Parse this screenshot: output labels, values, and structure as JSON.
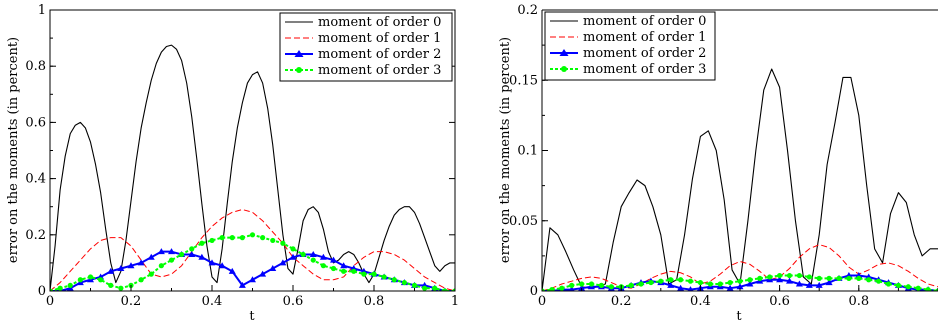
{
  "colors": {
    "order0": "#000000",
    "order1": "#ff0000",
    "order2": "#0000ff",
    "order3": "#00ff00"
  },
  "chart_data": [
    {
      "type": "line",
      "xlabel": "t",
      "ylabel": "error on the moments (in percent)",
      "xlim": [
        0,
        1
      ],
      "ylim": [
        0,
        1
      ],
      "x_ticks": [
        0,
        0.2,
        0.4,
        0.6,
        0.8,
        1
      ],
      "x_tick_labels": [
        "0",
        "0.2",
        "0.4",
        "0.6",
        "0.8",
        "1"
      ],
      "y_ticks": [
        0,
        0.2,
        0.4,
        0.6,
        0.8,
        1
      ],
      "y_tick_labels": [
        "0",
        "0.2",
        "0.4",
        "0.6",
        "0.8",
        "1"
      ],
      "legend": "top-right",
      "grid": false,
      "series": [
        {
          "name": "moment of order 0",
          "style": "solid",
          "x": [
            0,
            0.0125,
            0.025,
            0.0375,
            0.05,
            0.0625,
            0.075,
            0.0875,
            0.1,
            0.1125,
            0.125,
            0.1375,
            0.15,
            0.1625,
            0.175,
            0.1875,
            0.2,
            0.2125,
            0.225,
            0.2375,
            0.25,
            0.2625,
            0.275,
            0.2875,
            0.3,
            0.3125,
            0.325,
            0.3375,
            0.35,
            0.3625,
            0.375,
            0.3875,
            0.4,
            0.4125,
            0.425,
            0.4375,
            0.45,
            0.4625,
            0.475,
            0.4875,
            0.5,
            0.5125,
            0.525,
            0.5375,
            0.55,
            0.5625,
            0.575,
            0.5875,
            0.6,
            0.6125,
            0.625,
            0.6375,
            0.65,
            0.6625,
            0.675,
            0.6875,
            0.7,
            0.7125,
            0.725,
            0.7375,
            0.75,
            0.7625,
            0.775,
            0.7875,
            0.8,
            0.8125,
            0.825,
            0.8375,
            0.85,
            0.8625,
            0.875,
            0.8875,
            0.9,
            0.9125,
            0.925,
            0.9375,
            0.95,
            0.9625,
            0.975,
            0.9875,
            1
          ],
          "y": [
            0,
            0.16,
            0.36,
            0.48,
            0.56,
            0.59,
            0.6,
            0.58,
            0.53,
            0.45,
            0.35,
            0.22,
            0.1,
            0.03,
            0.07,
            0.18,
            0.32,
            0.46,
            0.58,
            0.67,
            0.75,
            0.81,
            0.85,
            0.87,
            0.875,
            0.86,
            0.82,
            0.74,
            0.62,
            0.47,
            0.31,
            0.16,
            0.05,
            0.03,
            0.15,
            0.31,
            0.46,
            0.58,
            0.67,
            0.74,
            0.77,
            0.78,
            0.74,
            0.65,
            0.52,
            0.36,
            0.2,
            0.08,
            0.06,
            0.15,
            0.25,
            0.29,
            0.3,
            0.28,
            0.22,
            0.14,
            0.1,
            0.11,
            0.13,
            0.14,
            0.13,
            0.1,
            0.06,
            0.03,
            0.06,
            0.12,
            0.18,
            0.23,
            0.27,
            0.29,
            0.3,
            0.3,
            0.28,
            0.24,
            0.19,
            0.14,
            0.09,
            0.07,
            0.09,
            0.1,
            0.1
          ]
        },
        {
          "name": "moment of order 1",
          "style": "dashed",
          "x": [
            0,
            0.025,
            0.05,
            0.075,
            0.1,
            0.125,
            0.15,
            0.175,
            0.2,
            0.225,
            0.25,
            0.275,
            0.3,
            0.325,
            0.35,
            0.375,
            0.4,
            0.425,
            0.45,
            0.475,
            0.5,
            0.525,
            0.55,
            0.575,
            0.6,
            0.625,
            0.65,
            0.675,
            0.7,
            0.725,
            0.75,
            0.775,
            0.8,
            0.825,
            0.85,
            0.875,
            0.9,
            0.925,
            0.95,
            0.975,
            1
          ],
          "y": [
            0,
            0.03,
            0.07,
            0.11,
            0.15,
            0.18,
            0.19,
            0.19,
            0.16,
            0.11,
            0.06,
            0.05,
            0.06,
            0.09,
            0.14,
            0.19,
            0.23,
            0.26,
            0.28,
            0.29,
            0.28,
            0.25,
            0.21,
            0.17,
            0.12,
            0.09,
            0.06,
            0.04,
            0.04,
            0.05,
            0.09,
            0.12,
            0.14,
            0.14,
            0.13,
            0.11,
            0.08,
            0.05,
            0.03,
            0.01,
            0
          ]
        },
        {
          "name": "moment of order 2",
          "style": "solid-triangle",
          "x": [
            0,
            0.025,
            0.05,
            0.075,
            0.1,
            0.125,
            0.15,
            0.175,
            0.2,
            0.225,
            0.25,
            0.275,
            0.3,
            0.325,
            0.35,
            0.375,
            0.4,
            0.425,
            0.45,
            0.475,
            0.5,
            0.525,
            0.55,
            0.575,
            0.6,
            0.625,
            0.65,
            0.675,
            0.7,
            0.725,
            0.75,
            0.775,
            0.8,
            0.825,
            0.85,
            0.875,
            0.9,
            0.925,
            0.95,
            0.975,
            1
          ],
          "y": [
            0,
            0,
            0.01,
            0.03,
            0.04,
            0.05,
            0.07,
            0.08,
            0.09,
            0.1,
            0.12,
            0.14,
            0.14,
            0.13,
            0.13,
            0.12,
            0.1,
            0.09,
            0.07,
            0.02,
            0.04,
            0.06,
            0.08,
            0.1,
            0.12,
            0.13,
            0.13,
            0.12,
            0.11,
            0.09,
            0.08,
            0.07,
            0.06,
            0.05,
            0.04,
            0.03,
            0.02,
            0.02,
            0.01,
            0,
            0
          ]
        },
        {
          "name": "moment of order 3",
          "style": "solid-circle",
          "x": [
            0,
            0.025,
            0.05,
            0.075,
            0.1,
            0.125,
            0.15,
            0.175,
            0.2,
            0.225,
            0.25,
            0.275,
            0.3,
            0.325,
            0.35,
            0.375,
            0.4,
            0.425,
            0.45,
            0.475,
            0.5,
            0.525,
            0.55,
            0.575,
            0.6,
            0.625,
            0.65,
            0.675,
            0.7,
            0.725,
            0.75,
            0.775,
            0.8,
            0.825,
            0.85,
            0.875,
            0.9,
            0.925,
            0.95,
            0.975,
            1
          ],
          "y": [
            0,
            0.01,
            0.02,
            0.04,
            0.05,
            0.04,
            0.02,
            0.01,
            0.02,
            0.04,
            0.06,
            0.09,
            0.11,
            0.13,
            0.15,
            0.17,
            0.18,
            0.19,
            0.19,
            0.19,
            0.2,
            0.19,
            0.18,
            0.17,
            0.15,
            0.13,
            0.11,
            0.09,
            0.08,
            0.07,
            0.07,
            0.06,
            0.06,
            0.05,
            0.04,
            0.03,
            0.02,
            0.01,
            0.01,
            0,
            0
          ]
        }
      ]
    },
    {
      "type": "line",
      "xlabel": "t",
      "ylabel": "error on the moments (in percent)",
      "xlim": [
        0,
        1
      ],
      "ylim": [
        0,
        0.2
      ],
      "x_ticks": [
        0,
        0.2,
        0.4,
        0.6,
        0.8
      ],
      "x_tick_labels": [
        "0",
        "0.2",
        "0.4",
        "0.6",
        "0.8"
      ],
      "y_ticks": [
        0,
        0.05,
        0.1,
        0.15,
        0.2
      ],
      "y_tick_labels": [
        "0",
        "0.05",
        "0.1",
        "0.15",
        "0.2"
      ],
      "legend": "top-left",
      "grid": false,
      "series": [
        {
          "name": "moment of order 0",
          "style": "solid",
          "x": [
            0,
            0.02,
            0.04,
            0.06,
            0.08,
            0.1,
            0.12,
            0.14,
            0.16,
            0.18,
            0.2,
            0.22,
            0.24,
            0.26,
            0.28,
            0.3,
            0.32,
            0.34,
            0.36,
            0.38,
            0.4,
            0.42,
            0.44,
            0.46,
            0.48,
            0.5,
            0.52,
            0.54,
            0.56,
            0.58,
            0.6,
            0.62,
            0.64,
            0.66,
            0.68,
            0.7,
            0.72,
            0.74,
            0.76,
            0.78,
            0.8,
            0.82,
            0.84,
            0.86,
            0.88,
            0.9,
            0.92,
            0.94,
            0.96,
            0.98,
            1
          ],
          "y": [
            0,
            0.045,
            0.04,
            0.028,
            0.015,
            0.003,
            0.002,
            0.003,
            0.005,
            0.035,
            0.06,
            0.07,
            0.079,
            0.075,
            0.06,
            0.04,
            0.005,
            0.008,
            0.04,
            0.08,
            0.11,
            0.114,
            0.1,
            0.065,
            0.015,
            0.005,
            0.05,
            0.1,
            0.143,
            0.158,
            0.145,
            0.1,
            0.05,
            0.01,
            0.005,
            0.04,
            0.09,
            0.12,
            0.152,
            0.152,
            0.125,
            0.075,
            0.03,
            0.02,
            0.055,
            0.07,
            0.063,
            0.04,
            0.025,
            0.03,
            0.03
          ]
        },
        {
          "name": "moment of order 1",
          "style": "dashed",
          "x": [
            0,
            0.025,
            0.05,
            0.075,
            0.1,
            0.125,
            0.15,
            0.175,
            0.2,
            0.225,
            0.25,
            0.275,
            0.3,
            0.325,
            0.35,
            0.375,
            0.4,
            0.425,
            0.45,
            0.475,
            0.5,
            0.525,
            0.55,
            0.575,
            0.6,
            0.625,
            0.65,
            0.675,
            0.7,
            0.725,
            0.75,
            0.775,
            0.8,
            0.825,
            0.85,
            0.875,
            0.9,
            0.925,
            0.95,
            0.975,
            1
          ],
          "y": [
            0,
            0.002,
            0.005,
            0.007,
            0.009,
            0.01,
            0.009,
            0.006,
            0.003,
            0.002,
            0.005,
            0.009,
            0.012,
            0.014,
            0.013,
            0.01,
            0.005,
            0.007,
            0.012,
            0.018,
            0.021,
            0.019,
            0.014,
            0.008,
            0.01,
            0.016,
            0.024,
            0.03,
            0.033,
            0.031,
            0.025,
            0.017,
            0.012,
            0.015,
            0.019,
            0.02,
            0.018,
            0.014,
            0.009,
            0.005,
            0.003
          ]
        },
        {
          "name": "moment of order 2",
          "style": "solid-triangle",
          "x": [
            0,
            0.025,
            0.05,
            0.075,
            0.1,
            0.125,
            0.15,
            0.175,
            0.2,
            0.225,
            0.25,
            0.275,
            0.3,
            0.325,
            0.35,
            0.375,
            0.4,
            0.425,
            0.45,
            0.475,
            0.5,
            0.525,
            0.55,
            0.575,
            0.6,
            0.625,
            0.65,
            0.675,
            0.7,
            0.725,
            0.75,
            0.775,
            0.8,
            0.825,
            0.85,
            0.875,
            0.9,
            0.925,
            0.95,
            0.975,
            1
          ],
          "y": [
            0,
            0,
            0.001,
            0.001,
            0.002,
            0.003,
            0.003,
            0.002,
            0.002,
            0.004,
            0.006,
            0.007,
            0.006,
            0.004,
            0.002,
            0.001,
            0.002,
            0.003,
            0.003,
            0.002,
            0.003,
            0.005,
            0.007,
            0.008,
            0.008,
            0.007,
            0.005,
            0.004,
            0.004,
            0.006,
            0.009,
            0.011,
            0.011,
            0.01,
            0.008,
            0.006,
            0.004,
            0.002,
            0.001,
            0.001,
            0
          ]
        },
        {
          "name": "moment of order 3",
          "style": "solid-circle",
          "x": [
            0,
            0.025,
            0.05,
            0.075,
            0.1,
            0.125,
            0.15,
            0.175,
            0.2,
            0.225,
            0.25,
            0.275,
            0.3,
            0.325,
            0.35,
            0.375,
            0.4,
            0.425,
            0.45,
            0.475,
            0.5,
            0.525,
            0.55,
            0.575,
            0.6,
            0.625,
            0.65,
            0.675,
            0.7,
            0.725,
            0.75,
            0.775,
            0.8,
            0.825,
            0.85,
            0.875,
            0.9,
            0.925,
            0.95,
            0.975,
            1
          ],
          "y": [
            0,
            0.001,
            0.002,
            0.004,
            0.005,
            0.005,
            0.004,
            0.003,
            0.003,
            0.004,
            0.005,
            0.006,
            0.007,
            0.008,
            0.008,
            0.007,
            0.006,
            0.005,
            0.005,
            0.006,
            0.007,
            0.008,
            0.009,
            0.01,
            0.011,
            0.011,
            0.011,
            0.01,
            0.009,
            0.009,
            0.009,
            0.009,
            0.009,
            0.008,
            0.007,
            0.005,
            0.004,
            0.003,
            0.002,
            0.001,
            0
          ]
        }
      ]
    }
  ]
}
